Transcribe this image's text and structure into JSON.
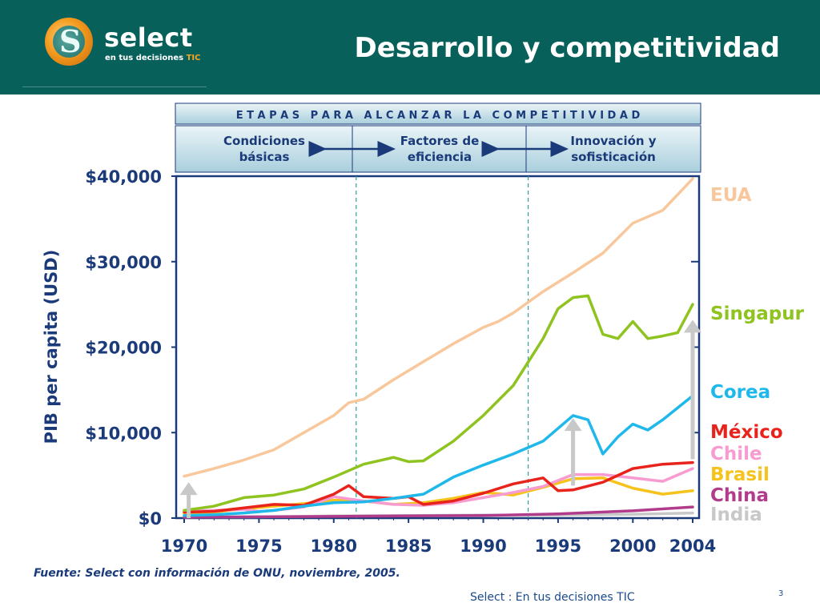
{
  "header": {
    "brand": "select",
    "brand_sub": "en tus decisiones",
    "brand_sub_accent": "TIC",
    "title": "Desarrollo y competitividad"
  },
  "stages": {
    "heading": "E T A P A S   P A R A   A L C A N Z A R   L A   C O M P E T I T I V I D A D",
    "items": [
      {
        "line1": "Condiciones",
        "line2": "básicas"
      },
      {
        "line1": "Factores de",
        "line2": "eficiencia"
      },
      {
        "line1": "Innovación y",
        "line2": "sofisticación"
      }
    ]
  },
  "footer": {
    "source": "Fuente: Select con información de ONU, noviembre, 2005.",
    "brand_line": "Select  : En tus decisiones TIC",
    "page": "3"
  },
  "chart_data": {
    "type": "line",
    "ylabel": "PIB per capita (USD)",
    "ylim": [
      0,
      40000
    ],
    "xlim": [
      1970,
      2004
    ],
    "yticks": [
      0,
      10000,
      20000,
      30000,
      40000
    ],
    "ytick_labels": [
      "$0",
      "$10,000",
      "$20,000",
      "$30,000",
      "$40,000"
    ],
    "xticks": [
      1970,
      1975,
      1980,
      1985,
      1990,
      1995,
      2000,
      2004
    ],
    "stage_boundaries": [
      1981.5,
      1993
    ],
    "grid": false,
    "legend": "right, end-of-line labels",
    "series": [
      {
        "name": "EUA",
        "color": "#f8c89c",
        "x": [
          1970,
          1972,
          1974,
          1976,
          1978,
          1980,
          1981,
          1982,
          1984,
          1986,
          1988,
          1990,
          1991,
          1992,
          1994,
          1996,
          1998,
          2000,
          2002,
          2004
        ],
        "y": [
          4900,
          5800,
          6800,
          8000,
          10000,
          12000,
          13500,
          13900,
          16200,
          18300,
          20400,
          22300,
          23000,
          24000,
          26500,
          28700,
          31000,
          34500,
          36000,
          39700
        ]
      },
      {
        "name": "Singapur",
        "color": "#8fc31f",
        "x": [
          1970,
          1972,
          1974,
          1976,
          1978,
          1980,
          1982,
          1984,
          1985,
          1986,
          1988,
          1990,
          1992,
          1994,
          1995,
          1996,
          1997,
          1998,
          1999,
          2000,
          2001,
          2002,
          2003,
          2004
        ],
        "y": [
          900,
          1400,
          2400,
          2700,
          3400,
          4800,
          6300,
          7100,
          6600,
          6700,
          9000,
          12000,
          15500,
          21000,
          24500,
          25800,
          26000,
          21500,
          21000,
          23000,
          21000,
          21300,
          21700,
          25000
        ]
      },
      {
        "name": "Corea",
        "color": "#1fb8ea",
        "x": [
          1970,
          1972,
          1974,
          1976,
          1978,
          1980,
          1982,
          1984,
          1986,
          1988,
          1990,
          1992,
          1994,
          1996,
          1997,
          1998,
          1999,
          2000,
          2001,
          2002,
          2004
        ],
        "y": [
          300,
          400,
          600,
          900,
          1400,
          1800,
          1900,
          2300,
          2800,
          4800,
          6200,
          7500,
          9000,
          12000,
          11500,
          7500,
          9500,
          11000,
          10300,
          11500,
          14300
        ]
      },
      {
        "name": "México",
        "color": "#e8231c",
        "x": [
          1970,
          1972,
          1974,
          1976,
          1978,
          1980,
          1981,
          1982,
          1984,
          1985,
          1986,
          1988,
          1990,
          1992,
          1994,
          1995,
          1996,
          1998,
          2000,
          2002,
          2004
        ],
        "y": [
          700,
          800,
          1200,
          1600,
          1500,
          2800,
          3800,
          2500,
          2300,
          2500,
          1600,
          2000,
          2900,
          4000,
          4700,
          3200,
          3300,
          4200,
          5800,
          6300,
          6500
        ]
      },
      {
        "name": "Chile",
        "color": "#f79bd0",
        "x": [
          1970,
          1972,
          1974,
          1975,
          1976,
          1978,
          1980,
          1982,
          1984,
          1986,
          1988,
          1990,
          1992,
          1994,
          1996,
          1998,
          2000,
          2002,
          2004
        ],
        "y": [
          800,
          900,
          1000,
          800,
          900,
          1300,
          2500,
          2000,
          1600,
          1500,
          1800,
          2400,
          3000,
          3700,
          5100,
          5100,
          4700,
          4300,
          5800
        ]
      },
      {
        "name": "Brasil",
        "color": "#f5c31b",
        "x": [
          1970,
          1972,
          1974,
          1976,
          1978,
          1980,
          1982,
          1984,
          1986,
          1988,
          1990,
          1992,
          1994,
          1996,
          1998,
          2000,
          2002,
          2004
        ],
        "y": [
          500,
          700,
          1100,
          1400,
          1700,
          2100,
          2000,
          1600,
          1800,
          2300,
          3000,
          2700,
          3600,
          4600,
          4700,
          3500,
          2800,
          3200
        ]
      },
      {
        "name": "China",
        "color": "#b23c8c",
        "x": [
          1970,
          1975,
          1980,
          1985,
          1990,
          1995,
          2000,
          2004
        ],
        "y": [
          100,
          150,
          200,
          250,
          300,
          500,
          850,
          1300
        ]
      },
      {
        "name": "India",
        "color": "#c8c8c8",
        "x": [
          1970,
          1975,
          1980,
          1985,
          1990,
          1995,
          2000,
          2004
        ],
        "y": [
          100,
          150,
          250,
          300,
          350,
          370,
          450,
          600
        ]
      }
    ],
    "arrows": [
      {
        "x": 1970.3,
        "from": 0,
        "to": 4200
      },
      {
        "x": 1996,
        "from": 3800,
        "to": 11700
      },
      {
        "x": 2004,
        "from": 6900,
        "to": 23200
      }
    ]
  }
}
